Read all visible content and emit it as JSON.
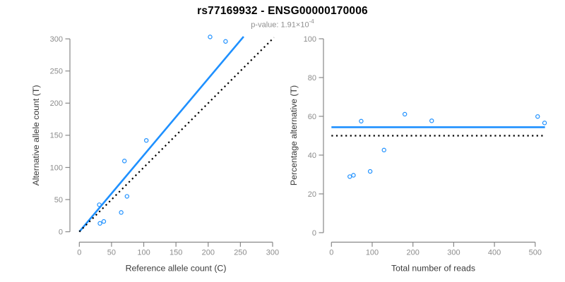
{
  "header": {
    "title": "rs77169932 - ENSG00000170006",
    "subtitle_prefix": "p-value: 1.91×10",
    "subtitle_exponent": "-4"
  },
  "colors": {
    "point_blue": "#1E90FF",
    "ratio_line_blue": "#1E90FF",
    "identity_line_black": "#000000",
    "axis_gray": "#888888",
    "tick_label_gray": "#8c8c8c",
    "axis_title_dark": "#3a3a3a"
  },
  "chart_data": [
    {
      "type": "scatter",
      "name": "allele-counts",
      "xlabel": "Reference allele count (C)",
      "ylabel": "Alternative allele count (T)",
      "xlim": [
        0,
        300
      ],
      "ylim": [
        0,
        300
      ],
      "xticks": [
        0,
        50,
        100,
        150,
        200,
        250,
        300
      ],
      "yticks": [
        0,
        50,
        100,
        150,
        200,
        250,
        300
      ],
      "grid": false,
      "legend": null,
      "points": [
        [
          32,
          13
        ],
        [
          38,
          16
        ],
        [
          31,
          42
        ],
        [
          65,
          30
        ],
        [
          74,
          55
        ],
        [
          70,
          110
        ],
        [
          104,
          142
        ],
        [
          203,
          303
        ],
        [
          227,
          296
        ]
      ],
      "lines": [
        {
          "name": "allelic-ratio-line",
          "style": "solid",
          "color": "#1E90FF",
          "width": 2.6,
          "from": [
            0,
            0
          ],
          "to": [
            255,
            303.5
          ]
        },
        {
          "name": "identity-line",
          "style": "dotted",
          "color": "#000000",
          "width": 2.2,
          "from": [
            0,
            0
          ],
          "to": [
            302,
            302
          ]
        }
      ]
    },
    {
      "type": "scatter",
      "name": "percentage-vs-coverage",
      "xlabel": "Total number of reads",
      "ylabel": "Percentage alternative (T)",
      "xlim": [
        0,
        530
      ],
      "ylim": [
        0,
        100
      ],
      "xticks": [
        0,
        100,
        200,
        300,
        400,
        500
      ],
      "yticks": [
        0,
        20,
        40,
        60,
        80,
        100
      ],
      "grid": false,
      "legend": null,
      "points": [
        [
          45,
          28.9
        ],
        [
          54,
          29.6
        ],
        [
          73,
          57.5
        ],
        [
          95,
          31.6
        ],
        [
          129,
          42.6
        ],
        [
          180,
          61.1
        ],
        [
          246,
          57.7
        ],
        [
          506,
          59.9
        ],
        [
          523,
          56.6
        ]
      ],
      "lines": [
        {
          "name": "mean-percentage-line",
          "style": "solid",
          "color": "#1E90FF",
          "width": 2.6,
          "from": [
            0,
            54.4
          ],
          "to": [
            524,
            54.4
          ]
        },
        {
          "name": "fifty-percent-line",
          "style": "dotted",
          "color": "#000000",
          "width": 2.2,
          "from": [
            0,
            50
          ],
          "to": [
            521,
            50
          ]
        }
      ]
    }
  ]
}
